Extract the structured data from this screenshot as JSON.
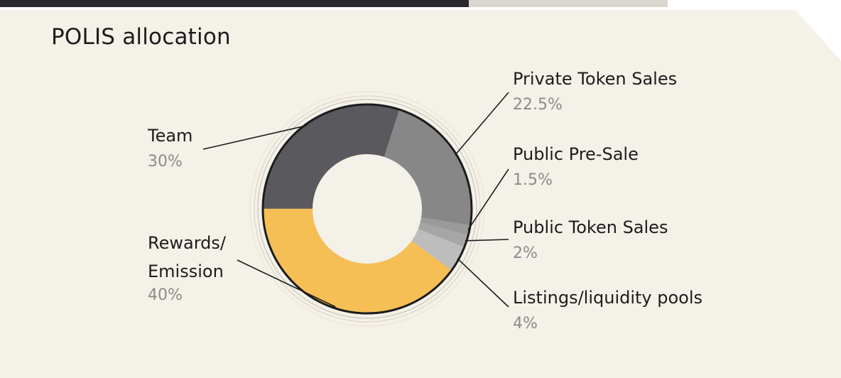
{
  "chart_data": {
    "type": "pie",
    "title": "POLIS allocation",
    "slices": [
      {
        "label": "Team",
        "label_lines": [
          "Team"
        ],
        "value_text": "30%",
        "value": 30,
        "color": "#5a5a5e"
      },
      {
        "label": "Private Token Sales",
        "label_lines": [
          "Private Token Sales"
        ],
        "value_text": "22.5%",
        "value": 22.5,
        "color": "#878787"
      },
      {
        "label": "Public Pre-Sale",
        "label_lines": [
          "Public Pre-Sale"
        ],
        "value_text": "1.5%",
        "value": 1.5,
        "color": "#9a9a9a"
      },
      {
        "label": "Public Token Sales",
        "label_lines": [
          "Public Token Sales"
        ],
        "value_text": "2%",
        "value": 2,
        "color": "#a6a6a6"
      },
      {
        "label": "Listings/liquidity pools",
        "label_lines": [
          "Listings/liquidity pools"
        ],
        "value_text": "4%",
        "value": 4,
        "color": "#bdbdbd"
      },
      {
        "label": "Rewards/ Emission",
        "label_lines": [
          "Rewards/",
          "Emission"
        ],
        "value_text": "40%",
        "value": 40,
        "color": "#f5bf55"
      }
    ]
  }
}
